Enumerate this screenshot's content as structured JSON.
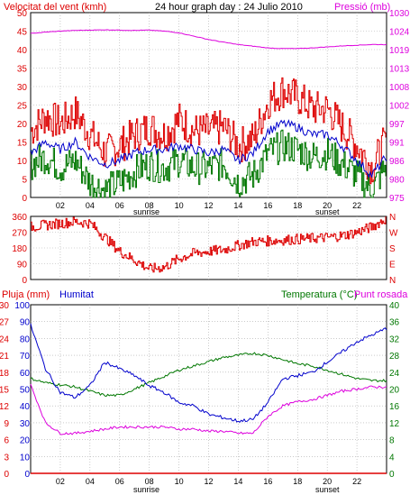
{
  "header": {
    "wind_label": "Velocitat del vent (kmh)",
    "title": "24 hour graph day : 24 Julio 2010",
    "pressure_label": "Pressió (mb)"
  },
  "bottom_header": {
    "rain_label": "Pluja (mm)",
    "humidity_label": "Humitat",
    "temperature_label": "Temperatura (°C)",
    "dewpoint_label": "Punt rosada"
  },
  "colors": {
    "wind": "#dd0000",
    "wind_avg": "#0000cc",
    "wind_gust_low": "#007700",
    "pressure": "#dd00dd",
    "direction": "#dd0000",
    "humidity": "#0000cc",
    "temperature": "#007700",
    "dewpoint": "#dd00dd",
    "rain": "#dd0000",
    "grid": "#aaaaaa"
  },
  "time_axis": {
    "labels": [
      "02",
      "04",
      "06",
      "08",
      "10",
      "12",
      "14",
      "16",
      "18",
      "20",
      "22"
    ],
    "sunrise_label": "sunrise",
    "sunset_label": "sunset",
    "sunrise_hour": 7.8,
    "sunset_hour": 20.3
  },
  "chart_data": [
    {
      "type": "line",
      "name": "wind_pressure",
      "x_hours": [
        0,
        1,
        2,
        3,
        4,
        5,
        6,
        7,
        8,
        9,
        10,
        11,
        12,
        13,
        14,
        15,
        16,
        17,
        18,
        19,
        20,
        21,
        22,
        23,
        24
      ],
      "y_left_ticks": [
        "0",
        "5",
        "10",
        "15",
        "20",
        "25",
        "30",
        "35",
        "40",
        "45",
        "50"
      ],
      "y_right_ticks": [
        "975",
        "980",
        "986",
        "991",
        "997",
        "1002",
        "1008",
        "1013",
        "1019",
        "1024",
        "1030"
      ],
      "ylim_left": [
        0,
        50
      ],
      "ylim_right": [
        975,
        1030
      ],
      "series": [
        {
          "key": "gust",
          "values": [
            18,
            22,
            20,
            23,
            17,
            12,
            14,
            17,
            19,
            17,
            21,
            18,
            18,
            19,
            14,
            16,
            26,
            29,
            27,
            24,
            24,
            19,
            14,
            8,
            16
          ]
        },
        {
          "key": "avg",
          "values": [
            12,
            15,
            13,
            15,
            11,
            9,
            10,
            12,
            13,
            13,
            14,
            13,
            12,
            13,
            10,
            12,
            18,
            20,
            19,
            17,
            17,
            14,
            10,
            6,
            11
          ]
        },
        {
          "key": "low",
          "values": [
            9,
            11,
            8,
            10,
            4,
            2,
            4,
            7,
            9,
            8,
            10,
            8,
            8,
            9,
            4,
            6,
            12,
            14,
            13,
            11,
            12,
            9,
            6,
            2,
            9
          ]
        },
        {
          "key": "pressure",
          "values": [
            1023.8,
            1024.2,
            1024.5,
            1024.7,
            1024.8,
            1024.9,
            1024.8,
            1024.7,
            1024.8,
            1024.5,
            1024.0,
            1023.0,
            1022.0,
            1021.2,
            1020.5,
            1020.0,
            1019.5,
            1019.3,
            1019.3,
            1019.5,
            1019.8,
            1020.1,
            1020.3,
            1020.5,
            1020.5
          ]
        }
      ]
    },
    {
      "type": "line",
      "name": "wind_direction",
      "x_hours": [
        0,
        1,
        2,
        3,
        4,
        5,
        6,
        7,
        8,
        9,
        10,
        11,
        12,
        13,
        14,
        15,
        16,
        17,
        18,
        19,
        20,
        21,
        22,
        23,
        24
      ],
      "y_left_ticks": [
        "0",
        "90",
        "180",
        "270",
        "360"
      ],
      "y_right_ticks": [
        "N",
        "E",
        "S",
        "W",
        "N"
      ],
      "ylim": [
        0,
        360
      ],
      "series": [
        {
          "key": "direction",
          "values": [
            300,
            310,
            320,
            330,
            320,
            240,
            160,
            110,
            60,
            70,
            120,
            150,
            160,
            170,
            195,
            215,
            220,
            225,
            230,
            235,
            240,
            250,
            270,
            300,
            350
          ]
        }
      ]
    },
    {
      "type": "line",
      "name": "humidity_temperature",
      "x_hours": [
        0,
        1,
        2,
        3,
        4,
        5,
        6,
        7,
        8,
        9,
        10,
        11,
        12,
        13,
        14,
        15,
        16,
        17,
        18,
        19,
        20,
        21,
        22,
        23,
        24
      ],
      "y_left_ticks": [
        "0",
        "10",
        "20",
        "30",
        "40",
        "50",
        "60",
        "70",
        "80",
        "90",
        "100"
      ],
      "y_left_rain_ticks": [
        "0",
        "3",
        "6",
        "9",
        "12",
        "15",
        "18",
        "21",
        "24",
        "27",
        "30"
      ],
      "y_right_ticks": [
        "0",
        "4",
        "8",
        "12",
        "16",
        "20",
        "24",
        "28",
        "32",
        "36",
        "40"
      ],
      "ylim_left": [
        0,
        100
      ],
      "ylim_right": [
        0,
        40
      ],
      "series": [
        {
          "key": "humidity",
          "values": [
            88,
            62,
            48,
            45,
            52,
            66,
            62,
            58,
            52,
            48,
            42,
            40,
            35,
            33,
            31,
            32,
            42,
            56,
            58,
            60,
            66,
            72,
            78,
            82,
            86
          ]
        },
        {
          "key": "temperature",
          "values": [
            22.5,
            21.5,
            21.0,
            20.5,
            19.5,
            18.5,
            18.5,
            20.0,
            21.5,
            23.0,
            24.5,
            25.5,
            26.5,
            27.5,
            28.0,
            28.5,
            28.0,
            27.0,
            26.0,
            25.5,
            24.5,
            23.5,
            22.5,
            22.0,
            22.0
          ]
        },
        {
          "key": "dewpoint",
          "values": [
            21.0,
            12.0,
            9.5,
            9.5,
            10.0,
            10.5,
            11.0,
            11.0,
            11.0,
            11.0,
            10.5,
            10.5,
            10.0,
            10.0,
            9.5,
            9.5,
            13.5,
            16.0,
            17.0,
            17.5,
            18.5,
            19.5,
            20.0,
            20.5,
            20.5
          ]
        },
        {
          "key": "rain",
          "values": [
            0,
            0,
            0,
            0,
            0,
            0,
            0,
            0,
            0,
            0,
            0,
            0,
            0,
            0,
            0,
            0,
            0,
            0,
            0,
            0,
            0,
            0,
            0,
            0,
            0
          ]
        }
      ]
    }
  ]
}
